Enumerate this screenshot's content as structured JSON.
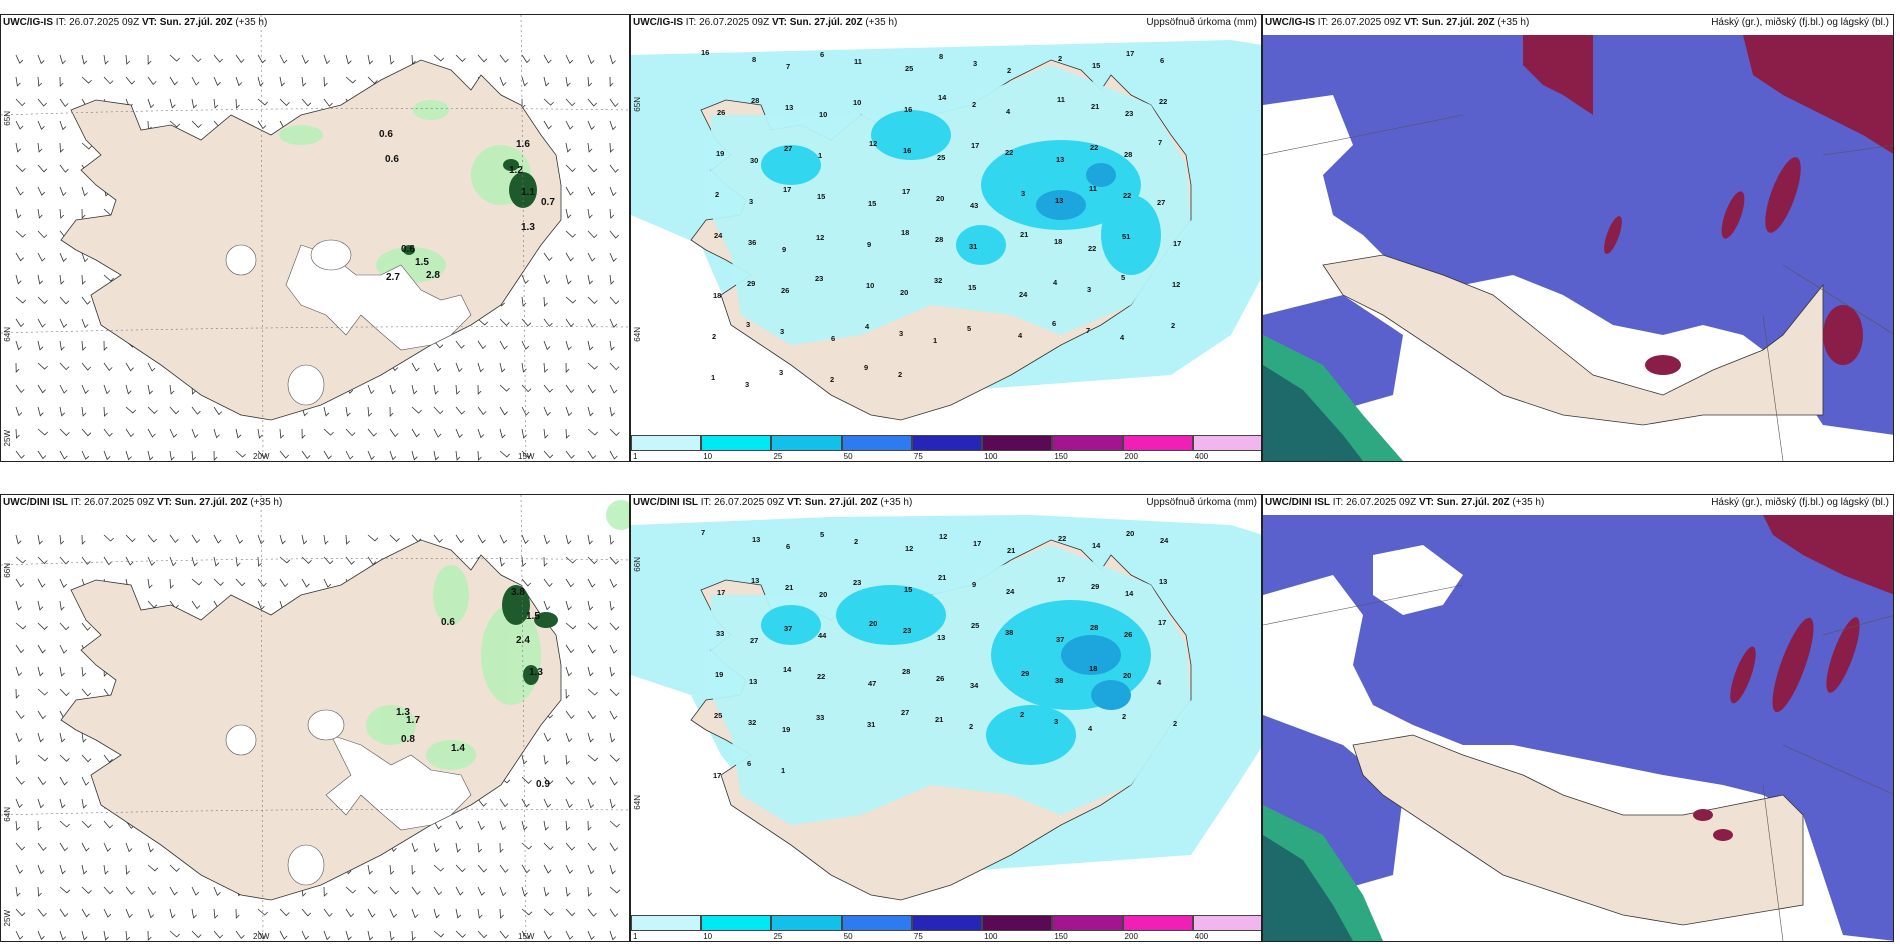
{
  "rows": [
    {
      "model": "UWC/IG-IS",
      "it_label": "IT:",
      "it_value": "26.07.2025 09Z",
      "vt_label": "VT:",
      "vt_value": "Sun. 27.júl. 20Z",
      "lead": "(+35 h)",
      "wind_panel": {
        "lat_labels": [
          "65N",
          "64N",
          "25W"
        ],
        "lon_labels": [
          "20W",
          "15W"
        ],
        "values": [
          "0.6",
          "0.6",
          "1.6",
          "1.2",
          "1.1",
          "0.7",
          "1.3",
          "0.6",
          "1.5",
          "2.7",
          "2.8"
        ]
      },
      "precip_panel": {
        "title": "Uppsöfnuð úrkoma (mm)",
        "lat_labels": [
          "65N",
          "64N"
        ],
        "values": [
          "16",
          "8",
          "7",
          "6",
          "11",
          "25",
          "8",
          "3",
          "2",
          "2",
          "15",
          "17",
          "6",
          "26",
          "28",
          "13",
          "10",
          "10",
          "16",
          "14",
          "2",
          "4",
          "11",
          "21",
          "23",
          "22",
          "19",
          "30",
          "27",
          "1",
          "12",
          "16",
          "25",
          "17",
          "22",
          "13",
          "22",
          "28",
          "7",
          "2",
          "3",
          "17",
          "15",
          "15",
          "17",
          "20",
          "43",
          "3",
          "13",
          "11",
          "22",
          "27",
          "24",
          "36",
          "9",
          "12",
          "9",
          "18",
          "28",
          "31",
          "21",
          "18",
          "22",
          "51",
          "17",
          "18",
          "29",
          "26",
          "23",
          "10",
          "20",
          "32",
          "15",
          "24",
          "4",
          "3",
          "5",
          "12",
          "2",
          "3",
          "3",
          "6",
          "4",
          "3",
          "1",
          "5",
          "4",
          "6",
          "7",
          "4",
          "2",
          "1",
          "3",
          "3",
          "2",
          "9",
          "2"
        ]
      },
      "cloud_panel": {
        "title": "Háský (gr.), miðský (fj.bl.) og lágský (bl.)"
      }
    },
    {
      "model": "UWC/DINI ISL",
      "it_label": "IT:",
      "it_value": "26.07.2025 09Z",
      "vt_label": "VT:",
      "vt_value": "Sun. 27.júl. 20Z",
      "lead": "(+35 h)",
      "wind_panel": {
        "lat_labels": [
          "66N",
          "64N",
          "25W"
        ],
        "lon_labels": [
          "20W",
          "15W"
        ],
        "values": [
          "0.6",
          "3.8",
          "1.5",
          "2.4",
          "1.3",
          "1.3",
          "0.8",
          "1.7",
          "1.4",
          "0.9"
        ]
      },
      "precip_panel": {
        "title": "Uppsöfnuð úrkoma (mm)",
        "lat_labels": [
          "66N",
          "64N"
        ],
        "values": [
          "7",
          "13",
          "6",
          "5",
          "2",
          "12",
          "12",
          "17",
          "21",
          "22",
          "14",
          "20",
          "24",
          "17",
          "13",
          "21",
          "20",
          "23",
          "15",
          "21",
          "9",
          "24",
          "17",
          "29",
          "14",
          "13",
          "33",
          "27",
          "37",
          "44",
          "20",
          "23",
          "13",
          "25",
          "38",
          "37",
          "28",
          "26",
          "17",
          "19",
          "13",
          "14",
          "22",
          "47",
          "28",
          "26",
          "34",
          "29",
          "38",
          "18",
          "20",
          "4",
          "25",
          "32",
          "19",
          "33",
          "31",
          "27",
          "21",
          "2",
          "2",
          "3",
          "4",
          "2",
          "2",
          "17",
          "6",
          "1"
        ]
      },
      "cloud_panel": {
        "title": "Háský (gr.), miðský (fj.bl.) og lágský (bl.)"
      }
    }
  ],
  "colorbar": {
    "ticks": [
      "1",
      "10",
      "25",
      "50",
      "75",
      "100",
      "150",
      "200",
      "400"
    ],
    "colors": [
      "#c8f7fb",
      "#00e8f2",
      "#12c0ea",
      "#2d7bee",
      "#2525b8",
      "#5a0a55",
      "#a3158f",
      "#f01fb5",
      "#f2b6ef"
    ]
  },
  "colors": {
    "land": "#efe1d3",
    "sea": "#ffffff",
    "precip_light": "#b5f3f8",
    "precip_mid": "#33d6ef",
    "precip_heavy": "#1da6dd",
    "low_cloud": "#5a60cc",
    "mid_cloud": "#2c3fb0",
    "high_cloud": "#8a1e48",
    "green_precip": "#b8f0b8",
    "dark_green": "#1e5a2c",
    "teal": "#2ea880"
  }
}
